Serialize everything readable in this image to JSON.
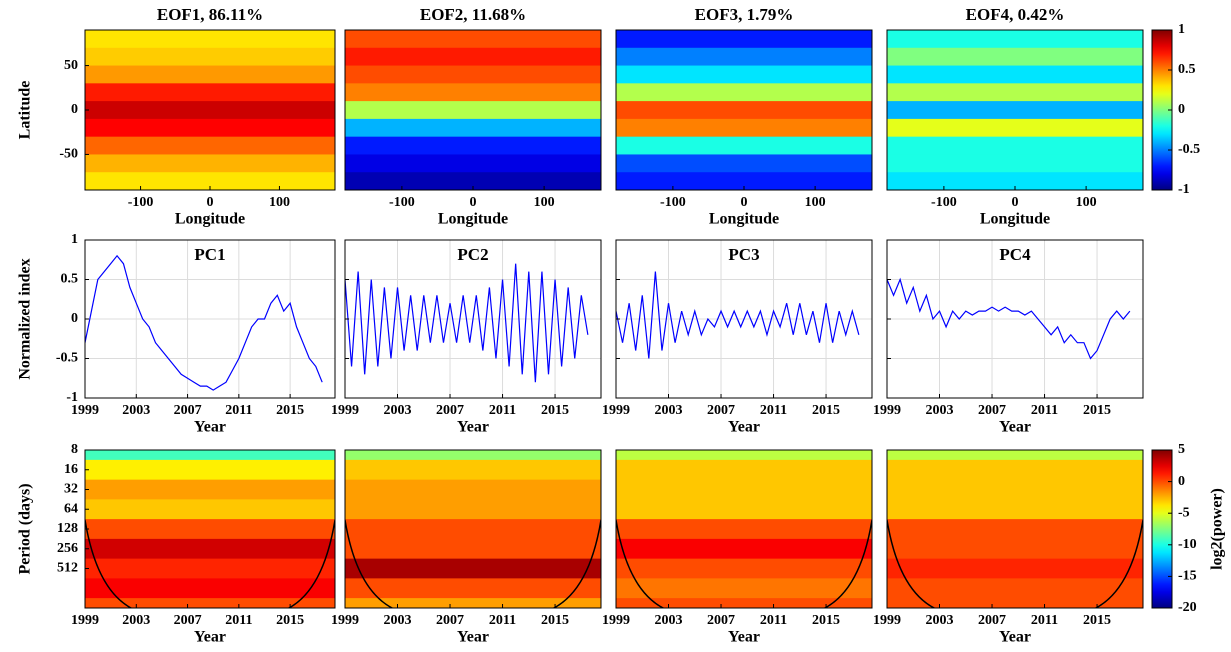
{
  "chart_data": [
    {
      "type": "heatmap",
      "title": "EOF1, 86.11%",
      "xlabel": "Longitude",
      "ylabel": "Latitude",
      "xlim": [
        -180,
        180
      ],
      "ylim": [
        -90,
        90
      ],
      "xticks": [
        -100,
        0,
        100
      ],
      "yticks": [
        -50,
        0,
        50
      ],
      "y": [
        80,
        60,
        40,
        20,
        0,
        -20,
        -40,
        -60,
        -80
      ],
      "values": [
        0.3,
        0.35,
        0.45,
        0.7,
        0.85,
        0.75,
        0.55,
        0.4,
        0.3
      ],
      "clim": [
        -1,
        1
      ],
      "colormap": "jet"
    },
    {
      "type": "heatmap",
      "title": "EOF2, 11.68%",
      "xlabel": "Longitude",
      "xlim": [
        -180,
        180
      ],
      "ylim": [
        -90,
        90
      ],
      "xticks": [
        -100,
        0,
        100
      ],
      "y": [
        80,
        60,
        40,
        20,
        0,
        -20,
        -40,
        -60,
        -80
      ],
      "values": [
        0.6,
        0.7,
        0.6,
        0.5,
        0.1,
        -0.4,
        -0.7,
        -0.8,
        -0.9
      ],
      "clim": [
        -1,
        1
      ],
      "colormap": "jet"
    },
    {
      "type": "heatmap",
      "title": "EOF3, 1.79%",
      "xlabel": "Longitude",
      "xlim": [
        -180,
        180
      ],
      "ylim": [
        -90,
        90
      ],
      "xticks": [
        -100,
        0,
        100
      ],
      "y": [
        80,
        60,
        40,
        20,
        0,
        -20,
        -40,
        -60,
        -80
      ],
      "values": [
        -0.7,
        -0.5,
        -0.3,
        0.1,
        0.6,
        0.5,
        -0.2,
        -0.6,
        -0.7
      ],
      "clim": [
        -1,
        1
      ],
      "colormap": "jet"
    },
    {
      "type": "heatmap",
      "title": "EOF4, 0.42%",
      "xlabel": "Longitude",
      "xlim": [
        -180,
        180
      ],
      "ylim": [
        -90,
        90
      ],
      "xticks": [
        -100,
        0,
        100
      ],
      "y": [
        80,
        60,
        40,
        20,
        0,
        -20,
        -40,
        -60,
        -80
      ],
      "values": [
        -0.2,
        0.0,
        -0.3,
        0.1,
        -0.4,
        0.2,
        -0.2,
        -0.2,
        -0.3
      ],
      "clim": [
        -1,
        1
      ],
      "colormap": "jet",
      "colorbar": {
        "ticks": [
          -1,
          -0.5,
          0,
          0.5,
          1
        ]
      }
    },
    {
      "type": "line",
      "title": "PC1",
      "xlabel": "Year",
      "ylabel": "Normalized index",
      "xlim": [
        1999,
        2018.5
      ],
      "ylim": [
        -1,
        1
      ],
      "xticks": [
        1999,
        2003,
        2007,
        2011,
        2015
      ],
      "yticks": [
        -1,
        -0.5,
        0,
        0.5,
        1
      ],
      "grid": true,
      "color": "#0000ff",
      "show_ytick_labels": true,
      "x": [
        1999,
        1999.5,
        2000,
        2000.5,
        2001,
        2001.5,
        2002,
        2002.5,
        2003,
        2003.5,
        2004,
        2004.5,
        2005,
        2005.5,
        2006,
        2006.5,
        2007,
        2007.5,
        2008,
        2008.5,
        2009,
        2009.5,
        2010,
        2010.5,
        2011,
        2011.5,
        2012,
        2012.5,
        2013,
        2013.5,
        2014,
        2014.5,
        2015,
        2015.5,
        2016,
        2016.5,
        2017,
        2017.5
      ],
      "values": [
        -0.3,
        0.1,
        0.5,
        0.6,
        0.7,
        0.8,
        0.7,
        0.4,
        0.2,
        0,
        -0.1,
        -0.3,
        -0.4,
        -0.5,
        -0.6,
        -0.7,
        -0.75,
        -0.8,
        -0.85,
        -0.85,
        -0.9,
        -0.85,
        -0.8,
        -0.65,
        -0.5,
        -0.3,
        -0.1,
        0,
        0,
        0.2,
        0.3,
        0.1,
        0.2,
        -0.1,
        -0.3,
        -0.5,
        -0.6,
        -0.8
      ]
    },
    {
      "type": "line",
      "title": "PC2",
      "xlabel": "Year",
      "xlim": [
        1999,
        2018.5
      ],
      "ylim": [
        -1,
        1
      ],
      "xticks": [
        1999,
        2003,
        2007,
        2011,
        2015
      ],
      "yticks": [
        -1,
        -0.5,
        0,
        0.5,
        1
      ],
      "grid": true,
      "color": "#0000ff",
      "show_ytick_labels": false,
      "x": [
        1999,
        1999.5,
        2000,
        2000.5,
        2001,
        2001.5,
        2002,
        2002.5,
        2003,
        2003.5,
        2004,
        2004.5,
        2005,
        2005.5,
        2006,
        2006.5,
        2007,
        2007.5,
        2008,
        2008.5,
        2009,
        2009.5,
        2010,
        2010.5,
        2011,
        2011.5,
        2012,
        2012.5,
        2013,
        2013.5,
        2014,
        2014.5,
        2015,
        2015.5,
        2016,
        2016.5,
        2017,
        2017.5
      ],
      "values": [
        0.5,
        -0.6,
        0.6,
        -0.7,
        0.5,
        -0.6,
        0.4,
        -0.5,
        0.4,
        -0.4,
        0.3,
        -0.4,
        0.3,
        -0.3,
        0.3,
        -0.3,
        0.2,
        -0.3,
        0.3,
        -0.3,
        0.3,
        -0.4,
        0.4,
        -0.5,
        0.5,
        -0.6,
        0.7,
        -0.7,
        0.6,
        -0.8,
        0.6,
        -0.7,
        0.5,
        -0.6,
        0.4,
        -0.5,
        0.3,
        -0.2
      ]
    },
    {
      "type": "line",
      "title": "PC3",
      "xlabel": "Year",
      "xlim": [
        1999,
        2018.5
      ],
      "ylim": [
        -1,
        1
      ],
      "xticks": [
        1999,
        2003,
        2007,
        2011,
        2015
      ],
      "yticks": [
        -1,
        -0.5,
        0,
        0.5,
        1
      ],
      "grid": true,
      "color": "#0000ff",
      "show_ytick_labels": false,
      "x": [
        1999,
        1999.5,
        2000,
        2000.5,
        2001,
        2001.5,
        2002,
        2002.5,
        2003,
        2003.5,
        2004,
        2004.5,
        2005,
        2005.5,
        2006,
        2006.5,
        2007,
        2007.5,
        2008,
        2008.5,
        2009,
        2009.5,
        2010,
        2010.5,
        2011,
        2011.5,
        2012,
        2012.5,
        2013,
        2013.5,
        2014,
        2014.5,
        2015,
        2015.5,
        2016,
        2016.5,
        2017,
        2017.5
      ],
      "values": [
        0.1,
        -0.3,
        0.2,
        -0.4,
        0.3,
        -0.5,
        0.6,
        -0.4,
        0.2,
        -0.3,
        0.1,
        -0.2,
        0.1,
        -0.2,
        0,
        -0.1,
        0.1,
        -0.1,
        0.1,
        -0.1,
        0.1,
        -0.1,
        0.1,
        -0.2,
        0.1,
        -0.1,
        0.2,
        -0.2,
        0.2,
        -0.2,
        0.1,
        -0.3,
        0.2,
        -0.3,
        0.1,
        -0.2,
        0.1,
        -0.2
      ]
    },
    {
      "type": "line",
      "title": "PC4",
      "xlabel": "Year",
      "xlim": [
        1999,
        2018.5
      ],
      "ylim": [
        -1,
        1
      ],
      "xticks": [
        1999,
        2003,
        2007,
        2011,
        2015
      ],
      "yticks": [
        -1,
        -0.5,
        0,
        0.5,
        1
      ],
      "grid": true,
      "color": "#0000ff",
      "show_ytick_labels": false,
      "x": [
        1999,
        1999.5,
        2000,
        2000.5,
        2001,
        2001.5,
        2002,
        2002.5,
        2003,
        2003.5,
        2004,
        2004.5,
        2005,
        2005.5,
        2006,
        2006.5,
        2007,
        2007.5,
        2008,
        2008.5,
        2009,
        2009.5,
        2010,
        2010.5,
        2011,
        2011.5,
        2012,
        2012.5,
        2013,
        2013.5,
        2014,
        2014.5,
        2015,
        2015.5,
        2016,
        2016.5,
        2017,
        2017.5
      ],
      "values": [
        0.5,
        0.3,
        0.5,
        0.2,
        0.4,
        0.1,
        0.3,
        0,
        0.1,
        -0.1,
        0.1,
        0,
        0.1,
        0.05,
        0.1,
        0.1,
        0.15,
        0.1,
        0.15,
        0.1,
        0.1,
        0.05,
        0.1,
        0,
        -0.1,
        -0.2,
        -0.1,
        -0.3,
        -0.2,
        -0.3,
        -0.3,
        -0.5,
        -0.4,
        -0.2,
        0,
        0.1,
        0,
        0.1
      ]
    },
    {
      "type": "heatmap",
      "xlabel": "Year",
      "ylabel": "Period (days)",
      "xlim": [
        1999,
        2018.5
      ],
      "ylim": [
        2048,
        8
      ],
      "ylog": true,
      "xticks": [
        1999,
        2003,
        2007,
        2011,
        2015
      ],
      "yticks": [
        8,
        16,
        32,
        64,
        128,
        256,
        512
      ],
      "y": [
        8,
        16,
        32,
        64,
        128,
        256,
        512,
        1024,
        2048
      ],
      "values": [
        -9,
        -4,
        -2,
        -3,
        0,
        3,
        1,
        2,
        0
      ],
      "clim": [
        -20,
        5
      ],
      "colormap": "jet"
    },
    {
      "type": "heatmap",
      "xlabel": "Year",
      "xlim": [
        1999,
        2018.5
      ],
      "ylim": [
        2048,
        8
      ],
      "ylog": true,
      "xticks": [
        1999,
        2003,
        2007,
        2011,
        2015
      ],
      "y": [
        8,
        16,
        32,
        64,
        128,
        256,
        512,
        1024,
        2048
      ],
      "values": [
        -7,
        -3,
        -2,
        -2,
        0,
        0,
        4,
        0,
        -2
      ],
      "clim": [
        -20,
        5
      ],
      "colormap": "jet"
    },
    {
      "type": "heatmap",
      "xlabel": "Year",
      "xlim": [
        1999,
        2018.5
      ],
      "ylim": [
        2048,
        8
      ],
      "ylog": true,
      "xticks": [
        1999,
        2003,
        2007,
        2011,
        2015
      ],
      "y": [
        8,
        16,
        32,
        64,
        128,
        256,
        512,
        1024,
        2048
      ],
      "values": [
        -6,
        -3,
        -3,
        -3,
        0,
        2,
        0,
        -1,
        0
      ],
      "clim": [
        -20,
        5
      ],
      "colormap": "jet"
    },
    {
      "type": "heatmap",
      "xlabel": "Year",
      "xlim": [
        1999,
        2018.5
      ],
      "ylim": [
        2048,
        8
      ],
      "ylog": true,
      "xticks": [
        1999,
        2003,
        2007,
        2011,
        2015
      ],
      "y": [
        8,
        16,
        32,
        64,
        128,
        256,
        512,
        1024,
        2048
      ],
      "values": [
        -6,
        -3,
        -3,
        -3,
        0,
        0,
        1,
        0,
        0
      ],
      "clim": [
        -20,
        5
      ],
      "colormap": "jet",
      "colorbar": {
        "ticks": [
          -20,
          -15,
          -10,
          -5,
          0,
          5
        ],
        "label": "log2(power)"
      }
    }
  ]
}
